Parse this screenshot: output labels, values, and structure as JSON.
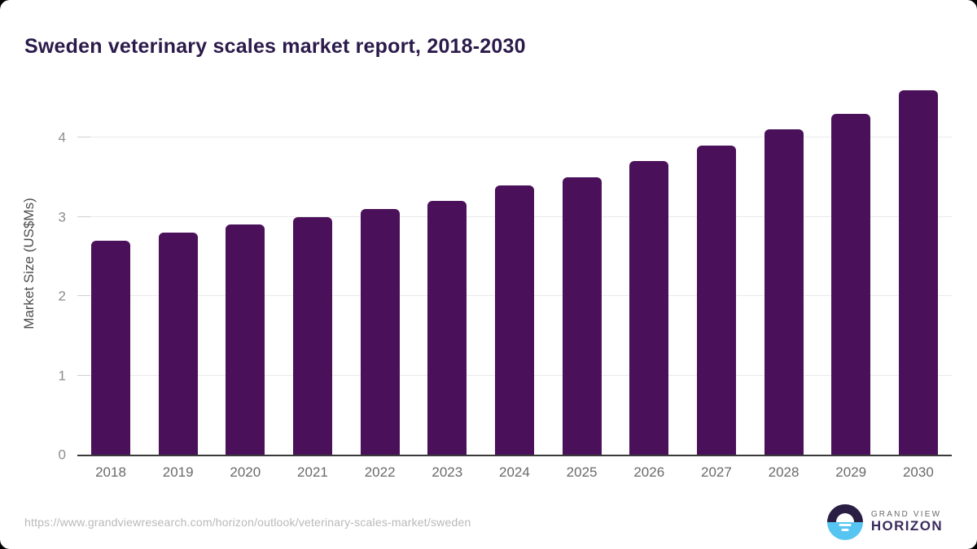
{
  "page": {
    "title": "Sweden veterinary scales market report, 2018-2030"
  },
  "chart_data": {
    "type": "bar",
    "title": "Sweden veterinary scales market report, 2018-2030",
    "categories": [
      "2018",
      "2019",
      "2020",
      "2021",
      "2022",
      "2023",
      "2024",
      "2025",
      "2026",
      "2027",
      "2028",
      "2029",
      "2030"
    ],
    "values": [
      2.7,
      2.8,
      2.9,
      3.0,
      3.1,
      3.2,
      3.4,
      3.5,
      3.7,
      3.9,
      4.1,
      4.3,
      4.6
    ],
    "xlabel": "",
    "ylabel": "Market Size (US$Ms)",
    "ylim": [
      0,
      4.8
    ],
    "yticks": [
      0,
      1,
      2,
      3,
      4
    ],
    "grid": true,
    "legend": "none",
    "bar_color": "#4a1059"
  },
  "footer": {
    "source_url": "https://www.grandviewresearch.com/horizon/outlook/veterinary-scales-market/sweden",
    "logo": {
      "line1": "GRAND VIEW",
      "line2": "HORIZON"
    }
  },
  "colors": {
    "title_text": "#2b1a4a",
    "bar": "#4a1059",
    "axis_line": "#3a3a3a",
    "gridline": "#e9e9e9",
    "ytick_text": "#8c8c8c",
    "xtick_text": "#6a6a6a",
    "ylabel_text": "#4d4d4d",
    "url_text": "#b9b9b9",
    "logo_dark": "#2b1e44",
    "logo_blue": "#56c5f2",
    "logo_horizon_text": "#3a2b5f"
  }
}
